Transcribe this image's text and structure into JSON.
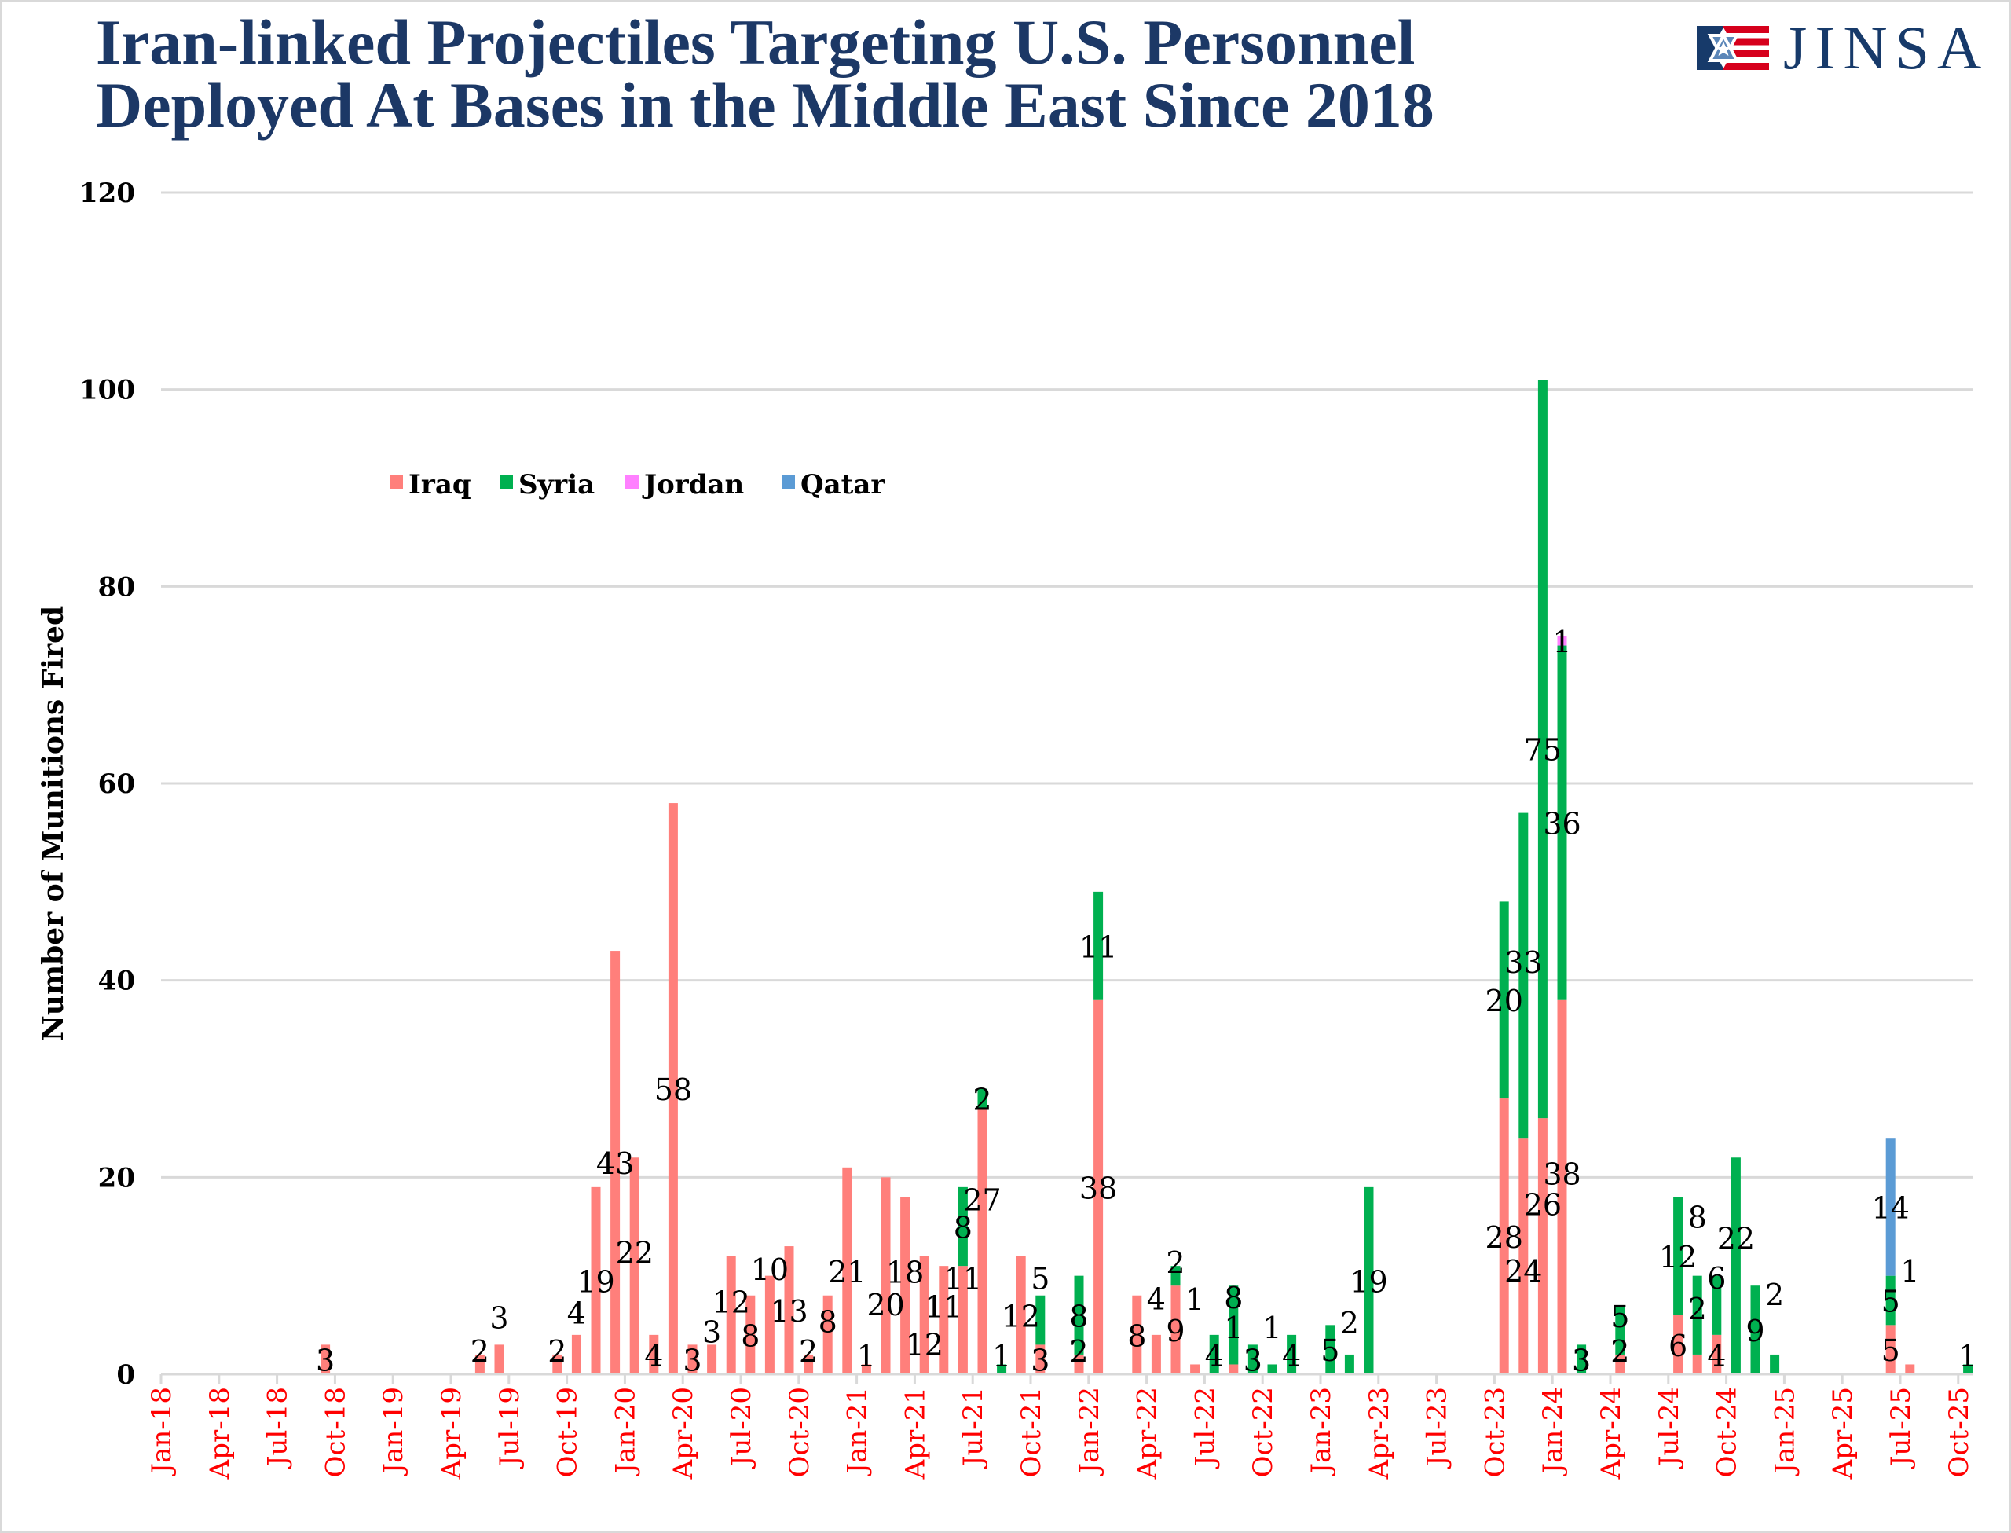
{
  "title_lines": [
    "Iran-linked Projectiles Targeting U.S. Personnel",
    "Deployed At Bases in the Middle East Since 2018"
  ],
  "logo": {
    "text": "JINSA",
    "colors": {
      "navy": "#173a6a",
      "red": "#d6001c",
      "star_blue": "#5b86b8"
    }
  },
  "chart_data": {
    "type": "bar",
    "stacked": true,
    "title": "Iran-linked Projectiles Targeting U.S. Personnel Deployed At Bases in the Middle East Since 2018",
    "xlabel": "",
    "ylabel": "Number of Munitions Fired",
    "ylim": [
      0,
      120
    ],
    "y_ticks": [
      0,
      20,
      40,
      60,
      80,
      100,
      120
    ],
    "grid": true,
    "legend_position": "top-left",
    "x_tick_labels": [
      "Jan-18",
      "Apr-18",
      "Jul-18",
      "Oct-18",
      "Jan-19",
      "Apr-19",
      "Jul-19",
      "Oct-19",
      "Jan-20",
      "Apr-20",
      "Jul-20",
      "Oct-20",
      "Jan-21",
      "Apr-21",
      "Jul-21",
      "Oct-21",
      "Jan-22",
      "Apr-22",
      "Jul-22",
      "Oct-22",
      "Jan-23",
      "Apr-23",
      "Jul-23",
      "Oct-23",
      "Jan-24",
      "Apr-24",
      "Jul-24",
      "Oct-24",
      "Jan-25",
      "Apr-25",
      "Jul-25",
      "Oct-25"
    ],
    "categories": [
      "Jan-18",
      "Feb-18",
      "Mar-18",
      "Apr-18",
      "May-18",
      "Jun-18",
      "Jul-18",
      "Aug-18",
      "Sep-18",
      "Oct-18",
      "Nov-18",
      "Dec-18",
      "Jan-19",
      "Feb-19",
      "Mar-19",
      "Apr-19",
      "May-19",
      "Jun-19",
      "Jul-19",
      "Aug-19",
      "Sep-19",
      "Oct-19",
      "Nov-19",
      "Dec-19",
      "Jan-20",
      "Feb-20",
      "Mar-20",
      "Apr-20",
      "May-20",
      "Jun-20",
      "Jul-20",
      "Aug-20",
      "Sep-20",
      "Oct-20",
      "Nov-20",
      "Dec-20",
      "Jan-21",
      "Feb-21",
      "Mar-21",
      "Apr-21",
      "May-21",
      "Jun-21",
      "Jul-21",
      "Aug-21",
      "Sep-21",
      "Oct-21",
      "Nov-21",
      "Dec-21",
      "Jan-22",
      "Feb-22",
      "Mar-22",
      "Apr-22",
      "May-22",
      "Jun-22",
      "Jul-22",
      "Aug-22",
      "Sep-22",
      "Oct-22",
      "Nov-22",
      "Dec-22",
      "Jan-23",
      "Feb-23",
      "Mar-23",
      "Apr-23",
      "May-23",
      "Jun-23",
      "Jul-23",
      "Aug-23",
      "Sep-23",
      "Oct-23",
      "Nov-23",
      "Dec-23",
      "Jan-24",
      "Feb-24",
      "Mar-24",
      "Apr-24",
      "May-24",
      "Jun-24",
      "Jul-24",
      "Aug-24",
      "Sep-24",
      "Oct-24",
      "Nov-24",
      "Dec-24",
      "Jan-25",
      "Feb-25",
      "Mar-25",
      "Apr-25",
      "May-25",
      "Jun-25",
      "Jul-25",
      "Aug-25",
      "Sep-25",
      "Oct-25"
    ],
    "series": [
      {
        "name": "Iraq",
        "color": "#ff7f7b",
        "values": [
          0,
          0,
          0,
          0,
          0,
          0,
          0,
          0,
          3,
          0,
          0,
          0,
          0,
          0,
          0,
          0,
          2,
          3,
          0,
          0,
          2,
          4,
          19,
          43,
          22,
          4,
          58,
          3,
          3,
          12,
          8,
          10,
          13,
          2,
          8,
          21,
          1,
          20,
          18,
          12,
          11,
          11,
          27,
          0,
          12,
          3,
          0,
          2,
          38,
          0,
          8,
          4,
          9,
          1,
          0,
          1,
          0,
          0,
          0,
          0,
          0,
          0,
          0,
          0,
          0,
          0,
          0,
          0,
          0,
          28,
          24,
          26,
          38,
          0,
          0,
          2,
          0,
          0,
          6,
          2,
          4,
          0,
          0,
          0,
          0,
          0,
          0,
          0,
          0,
          5,
          1,
          0,
          0,
          0
        ]
      },
      {
        "name": "Syria",
        "color": "#00b050",
        "values": [
          0,
          0,
          0,
          0,
          0,
          0,
          0,
          0,
          0,
          0,
          0,
          0,
          0,
          0,
          0,
          0,
          0,
          0,
          0,
          0,
          0,
          0,
          0,
          0,
          0,
          0,
          0,
          0,
          0,
          0,
          0,
          0,
          0,
          0,
          0,
          0,
          0,
          0,
          0,
          0,
          0,
          8,
          2,
          1,
          0,
          5,
          0,
          8,
          11,
          0,
          0,
          0,
          2,
          0,
          4,
          8,
          3,
          1,
          4,
          0,
          5,
          2,
          19,
          0,
          0,
          0,
          0,
          0,
          0,
          20,
          33,
          75,
          36,
          3,
          0,
          5,
          0,
          0,
          12,
          8,
          6,
          22,
          9,
          2,
          0,
          0,
          0,
          0,
          0,
          5,
          0,
          0,
          0,
          1
        ]
      },
      {
        "name": "Jordan",
        "color": "#ff80ff",
        "values": [
          0,
          0,
          0,
          0,
          0,
          0,
          0,
          0,
          0,
          0,
          0,
          0,
          0,
          0,
          0,
          0,
          0,
          0,
          0,
          0,
          0,
          0,
          0,
          0,
          0,
          0,
          0,
          0,
          0,
          0,
          0,
          0,
          0,
          0,
          0,
          0,
          0,
          0,
          0,
          0,
          0,
          0,
          0,
          0,
          0,
          0,
          0,
          0,
          0,
          0,
          0,
          0,
          0,
          0,
          0,
          0,
          0,
          0,
          0,
          0,
          0,
          0,
          0,
          0,
          0,
          0,
          0,
          0,
          0,
          0,
          0,
          0,
          1,
          0,
          0,
          0,
          0,
          0,
          0,
          0,
          0,
          0,
          0,
          0,
          0,
          0,
          0,
          0,
          0,
          0,
          0,
          0,
          0,
          0
        ]
      },
      {
        "name": "Qatar",
        "color": "#5b9bd5",
        "values": [
          0,
          0,
          0,
          0,
          0,
          0,
          0,
          0,
          0,
          0,
          0,
          0,
          0,
          0,
          0,
          0,
          0,
          0,
          0,
          0,
          0,
          0,
          0,
          0,
          0,
          0,
          0,
          0,
          0,
          0,
          0,
          0,
          0,
          0,
          0,
          0,
          0,
          0,
          0,
          0,
          0,
          0,
          0,
          0,
          0,
          0,
          0,
          0,
          0,
          0,
          0,
          0,
          0,
          0,
          0,
          0,
          0,
          0,
          0,
          0,
          0,
          0,
          0,
          0,
          0,
          0,
          0,
          0,
          0,
          0,
          0,
          0,
          0,
          0,
          0,
          0,
          0,
          0,
          0,
          0,
          0,
          0,
          0,
          0,
          0,
          0,
          0,
          0,
          0,
          14,
          0,
          0,
          0,
          0
        ]
      }
    ],
    "colors": {
      "title": "#1c3866",
      "x_tick_labels": "#ff0000",
      "gridline": "#d9d9d9"
    }
  }
}
